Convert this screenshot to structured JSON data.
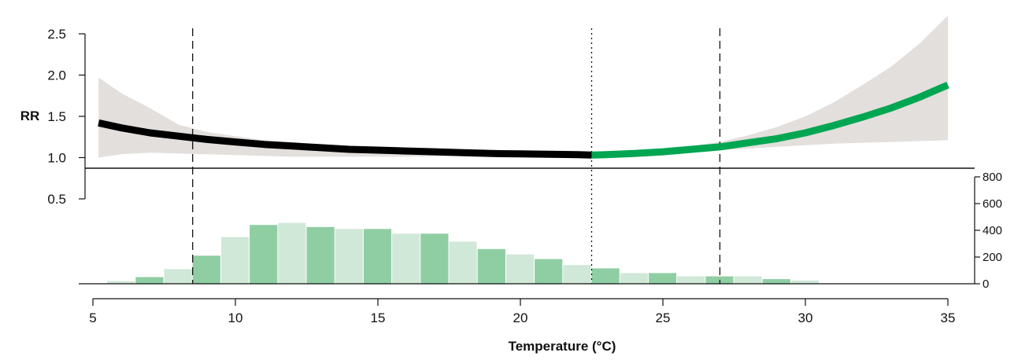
{
  "chart_data": {
    "type": "line",
    "xlabel": "Temperature (°C)",
    "ylabel": "RR",
    "x_ticks": [
      5,
      10,
      15,
      20,
      25,
      30,
      35
    ],
    "xlim": [
      5,
      35
    ],
    "rr_ticks": [
      0.5,
      1.0,
      1.5,
      2.0,
      2.5
    ],
    "rr_tick_labels": [
      "0.5",
      "1.0",
      "1.5",
      "2.0",
      "2.5"
    ],
    "rr_ylim": [
      0.5,
      2.5
    ],
    "reference_rr": 0.9,
    "mmt": 22.5,
    "percentile_lines": [
      8.5,
      27
    ],
    "colors": {
      "cold_curve": "#000000",
      "heat_curve": "#00a651",
      "ci_band": "#e3dfdc",
      "hist_dark": "#8fcea3",
      "hist_light": "#d0e8d8"
    },
    "series": [
      {
        "segment": "cold",
        "x": [
          5.2,
          6,
          7,
          8,
          9,
          10,
          11,
          12,
          13,
          14,
          15,
          16,
          17,
          18,
          19,
          20,
          21,
          22,
          22.5
        ],
        "y": [
          1.42,
          1.36,
          1.3,
          1.26,
          1.22,
          1.19,
          1.16,
          1.14,
          1.12,
          1.1,
          1.09,
          1.08,
          1.07,
          1.06,
          1.05,
          1.045,
          1.04,
          1.035,
          1.03
        ],
        "lower": [
          1.0,
          1.04,
          1.06,
          1.05,
          1.04,
          1.03,
          1.02,
          1.01,
          1.01,
          1.01,
          1.01,
          1.01,
          1.015,
          1.02,
          1.02,
          1.02,
          1.025,
          1.03,
          1.03
        ],
        "upper": [
          1.97,
          1.78,
          1.6,
          1.4,
          1.31,
          1.26,
          1.21,
          1.18,
          1.15,
          1.13,
          1.11,
          1.1,
          1.09,
          1.08,
          1.07,
          1.06,
          1.05,
          1.04,
          1.03
        ]
      },
      {
        "segment": "heat",
        "x": [
          22.5,
          23,
          24,
          25,
          26,
          27,
          28,
          29,
          30,
          31,
          32,
          33,
          34,
          35
        ],
        "y": [
          1.03,
          1.035,
          1.05,
          1.07,
          1.1,
          1.13,
          1.18,
          1.23,
          1.3,
          1.39,
          1.49,
          1.6,
          1.73,
          1.88
        ],
        "lower": [
          1.03,
          1.03,
          1.04,
          1.055,
          1.07,
          1.09,
          1.11,
          1.13,
          1.15,
          1.17,
          1.18,
          1.19,
          1.2,
          1.21
        ],
        "upper": [
          1.03,
          1.04,
          1.07,
          1.1,
          1.14,
          1.19,
          1.27,
          1.37,
          1.5,
          1.67,
          1.88,
          2.1,
          2.38,
          2.72
        ]
      }
    ],
    "histogram": {
      "bin_width": 1,
      "bin_starts": [
        5.5,
        6.5,
        7.5,
        8.5,
        9.5,
        10.5,
        11.5,
        12.5,
        13.5,
        14.5,
        15.5,
        16.5,
        17.5,
        18.5,
        19.5,
        20.5,
        21.5,
        22.5,
        23.5,
        24.5,
        25.5,
        26.5,
        27.5,
        28.5,
        29.5,
        30.5
      ],
      "counts": [
        20,
        50,
        110,
        210,
        350,
        440,
        455,
        425,
        410,
        410,
        375,
        375,
        315,
        260,
        220,
        185,
        140,
        115,
        80,
        80,
        55,
        55,
        55,
        35,
        25,
        0
      ],
      "y_ticks": [
        0,
        200,
        400,
        600,
        800
      ],
      "ylim": [
        0,
        800
      ]
    }
  }
}
